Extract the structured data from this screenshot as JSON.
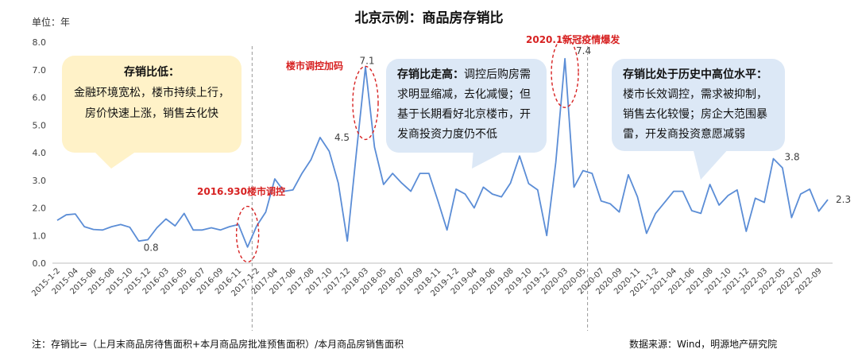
{
  "chart_data": {
    "type": "line",
    "title": "北京示例：商品房存销比",
    "unit_label": "单位：年",
    "ylim": [
      0,
      8
    ],
    "yticks": [
      "0.0",
      "1.0",
      "2.0",
      "3.0",
      "4.0",
      "5.0",
      "6.0",
      "7.0",
      "8.0"
    ],
    "x_tick_labels": [
      "2015-1-2",
      "2015-04",
      "2015-06",
      "2015-08",
      "2015-10",
      "2015-12",
      "2016-03",
      "2016-05",
      "2016-07",
      "2016-09",
      "2016-11",
      "2017-1-2",
      "2017-04",
      "2017-06",
      "2017-08",
      "2017-10",
      "2017-12",
      "2018-03",
      "2018-05",
      "2018-07",
      "2018-09",
      "2018-11",
      "2019-1-2",
      "2019-04",
      "2019-06",
      "2019-08",
      "2019-10",
      "2019-12",
      "2020-03",
      "2020-05",
      "2020-07",
      "2020-09",
      "2020-11",
      "2021-1-2",
      "2021-04",
      "2021-06",
      "2021-08",
      "2021-10",
      "2021-12",
      "2022-03",
      "2022-05",
      "2022-07",
      "2022-09"
    ],
    "series": [
      {
        "color": "#5B8DD6",
        "values": [
          1.55,
          1.75,
          1.78,
          1.32,
          1.22,
          1.2,
          1.32,
          1.4,
          1.3,
          0.8,
          0.85,
          1.28,
          1.6,
          1.35,
          1.8,
          1.2,
          1.2,
          1.28,
          1.2,
          1.32,
          1.4,
          0.58,
          1.35,
          1.85,
          3.05,
          2.6,
          2.65,
          3.25,
          3.75,
          4.55,
          4.05,
          2.9,
          0.8,
          4.0,
          7.1,
          4.2,
          2.85,
          3.25,
          2.9,
          2.6,
          3.25,
          3.25,
          2.25,
          1.2,
          2.68,
          2.5,
          2.0,
          2.75,
          2.5,
          2.4,
          2.9,
          3.88,
          2.88,
          2.65,
          1.0,
          3.65,
          7.4,
          2.75,
          3.35,
          3.25,
          2.25,
          2.15,
          1.85,
          3.2,
          2.4,
          1.08,
          1.8,
          2.2,
          2.6,
          2.6,
          1.9,
          1.8,
          2.85,
          2.1,
          2.45,
          2.65,
          1.15,
          2.35,
          2.2,
          3.78,
          3.45,
          1.65,
          2.5,
          2.68,
          1.88,
          2.3
        ]
      }
    ],
    "data_labels": [
      {
        "index": 10,
        "text": "0.8"
      },
      {
        "index": 29,
        "text": "4.5"
      },
      {
        "index": 34,
        "text": "7.1"
      },
      {
        "index": 56,
        "text": "7.4"
      },
      {
        "index": 79,
        "text": "3.8"
      },
      {
        "index": 85,
        "text": "2.3"
      }
    ],
    "vlines_at_index": [
      21.5,
      58.5
    ],
    "grid": false,
    "line_color": "#5B8DD6"
  },
  "annotations": {
    "a2016": "2016.930楼市调控",
    "a2017": "楼市调控加码",
    "a2020": "2020.1新冠疫情爆发"
  },
  "bubbles": {
    "left": {
      "head": "存销比低：",
      "lines": [
        "金融环境宽松，楼市持续上行，",
        "房价快速上涨，销售去化快"
      ]
    },
    "middle": {
      "head": "存销比走高：",
      "head_rest": "调控后购房需",
      "lines": [
        "求明显缩减，去化减慢；但",
        "基于长期看好北京楼市，开",
        "发商投资力度仍不低"
      ]
    },
    "right": {
      "head": "存销比处于历史中高位水平：",
      "lines": [
        "楼市长效调控，需求被抑制，",
        "销售去化较慢；房企大范围暴",
        "雷，开发商投资意愿减弱"
      ]
    }
  },
  "footer": {
    "note": "注：存销比=（上月末商品房待售面积+本月商品房批准预售面积）/本月商品房销售面积",
    "source": "数据来源：Wind，明源地产研究院"
  },
  "colors": {
    "red": "#D72222",
    "bubble_yellow": "#FFF2C8",
    "bubble_blue": "#DCE8F6",
    "axis": "#BFBFBF"
  }
}
